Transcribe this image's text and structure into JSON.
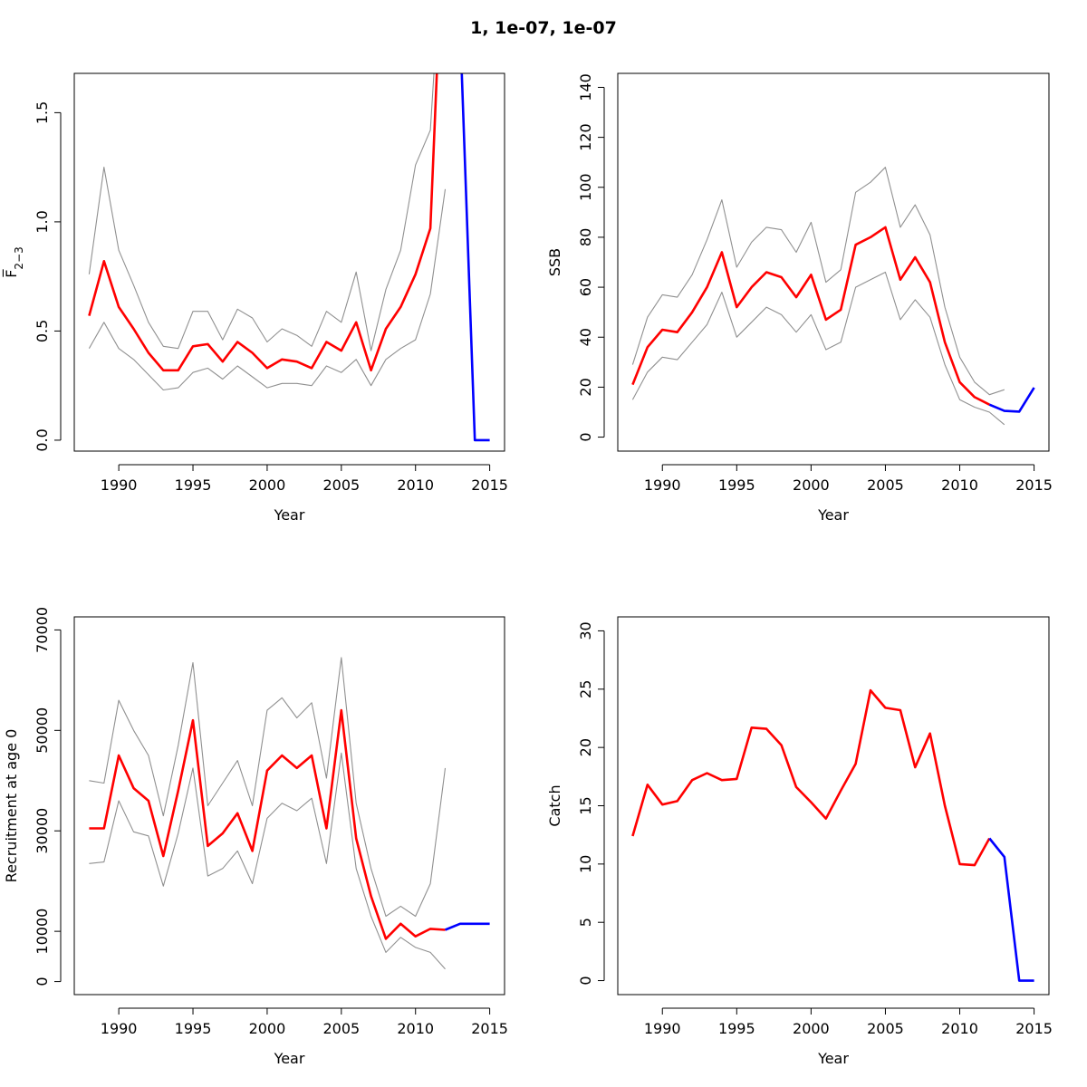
{
  "figure": {
    "title": "1, 1e-07, 1e-07"
  },
  "colors": {
    "estimate": "#ff0000",
    "forecast": "#0000ff",
    "bounds": "#909090"
  },
  "chart_data": [
    {
      "type": "line",
      "title": "",
      "xlabel": "Year",
      "ylabel": "F̅",
      "ylabel_sub": "2−3",
      "xlim": [
        1987.0,
        2016.0
      ],
      "ylim": [
        -0.05,
        1.68
      ],
      "xticks": [
        1990,
        1995,
        2000,
        2005,
        2010,
        2015
      ],
      "xtick_labels": [
        "1990",
        "1995",
        "2000",
        "2005",
        "2010",
        "2015"
      ],
      "yticks": [
        0.0,
        0.5,
        1.0,
        1.5
      ],
      "ytick_labels": [
        "0.0",
        "0.5",
        "1.0",
        "1.5"
      ],
      "series": [
        {
          "role": "upper",
          "x": [
            1988,
            1989,
            1990,
            1991,
            1992,
            1993,
            1994,
            1995,
            1996,
            1997,
            1998,
            1999,
            2000,
            2001,
            2002,
            2003,
            2004,
            2005,
            2006,
            2007,
            2008,
            2009,
            2010,
            2011,
            2012
          ],
          "values": [
            0.76,
            1.25,
            0.87,
            0.71,
            0.54,
            0.43,
            0.42,
            0.59,
            0.59,
            0.46,
            0.6,
            0.56,
            0.45,
            0.51,
            0.48,
            0.43,
            0.59,
            0.54,
            0.77,
            0.41,
            0.69,
            0.87,
            1.26,
            1.42,
            2.5
          ]
        },
        {
          "role": "estimate",
          "x": [
            1988,
            1989,
            1990,
            1991,
            1992,
            1993,
            1994,
            1995,
            1996,
            1997,
            1998,
            1999,
            2000,
            2001,
            2002,
            2003,
            2004,
            2005,
            2006,
            2007,
            2008,
            2009,
            2010,
            2011,
            2012
          ],
          "values": [
            0.57,
            0.82,
            0.61,
            0.51,
            0.4,
            0.32,
            0.32,
            0.43,
            0.44,
            0.36,
            0.45,
            0.4,
            0.33,
            0.37,
            0.36,
            0.33,
            0.45,
            0.41,
            0.54,
            0.32,
            0.51,
            0.61,
            0.76,
            0.97,
            2.6
          ]
        },
        {
          "role": "lower",
          "x": [
            1988,
            1989,
            1990,
            1991,
            1992,
            1993,
            1994,
            1995,
            1996,
            1997,
            1998,
            1999,
            2000,
            2001,
            2002,
            2003,
            2004,
            2005,
            2006,
            2007,
            2008,
            2009,
            2010,
            2011,
            2012
          ],
          "values": [
            0.42,
            0.54,
            0.42,
            0.37,
            0.3,
            0.23,
            0.24,
            0.31,
            0.33,
            0.28,
            0.34,
            0.29,
            0.24,
            0.26,
            0.26,
            0.25,
            0.34,
            0.31,
            0.37,
            0.25,
            0.37,
            0.42,
            0.46,
            0.67,
            1.15
          ]
        },
        {
          "role": "forecast",
          "x": [
            2012,
            2013,
            2014,
            2015
          ],
          "values": [
            2.6,
            1.9,
            0.0,
            0.0
          ]
        }
      ]
    },
    {
      "type": "line",
      "title": "",
      "xlabel": "Year",
      "ylabel": "SSB",
      "xlim": [
        1987.0,
        2016.0
      ],
      "ylim": [
        -5.6,
        145.6
      ],
      "xticks": [
        1990,
        1995,
        2000,
        2005,
        2010,
        2015
      ],
      "xtick_labels": [
        "1990",
        "1995",
        "2000",
        "2005",
        "2010",
        "2015"
      ],
      "yticks": [
        0,
        20,
        40,
        60,
        80,
        100,
        120,
        140
      ],
      "ytick_labels": [
        "0",
        "20",
        "40",
        "60",
        "80",
        "100",
        "120",
        "140"
      ],
      "series": [
        {
          "role": "upper",
          "x": [
            1988,
            1989,
            1990,
            1991,
            1992,
            1993,
            1994,
            1995,
            1996,
            1997,
            1998,
            1999,
            2000,
            2001,
            2002,
            2003,
            2004,
            2005,
            2006,
            2007,
            2008,
            2009,
            2010,
            2011,
            2012,
            2013
          ],
          "values": [
            29,
            48,
            57,
            56,
            65,
            79,
            95,
            68,
            78,
            84,
            83,
            74,
            86,
            62,
            67,
            98,
            102,
            108,
            84,
            93,
            81,
            52,
            32,
            22,
            17,
            19
          ]
        },
        {
          "role": "estimate",
          "x": [
            1988,
            1989,
            1990,
            1991,
            1992,
            1993,
            1994,
            1995,
            1996,
            1997,
            1998,
            1999,
            2000,
            2001,
            2002,
            2003,
            2004,
            2005,
            2006,
            2007,
            2008,
            2009,
            2010,
            2011,
            2012
          ],
          "values": [
            21,
            36,
            43,
            42,
            50,
            60,
            74,
            52,
            60,
            66,
            64,
            56,
            65,
            47,
            51,
            77,
            80,
            84,
            63,
            72,
            62,
            38,
            22,
            16,
            13
          ]
        },
        {
          "role": "lower",
          "x": [
            1988,
            1989,
            1990,
            1991,
            1992,
            1993,
            1994,
            1995,
            1996,
            1997,
            1998,
            1999,
            2000,
            2001,
            2002,
            2003,
            2004,
            2005,
            2006,
            2007,
            2008,
            2009,
            2010,
            2011,
            2012,
            2013
          ],
          "values": [
            15,
            26,
            32,
            31,
            38,
            45,
            58,
            40,
            46,
            52,
            49,
            42,
            49,
            35,
            38,
            60,
            63,
            66,
            47,
            55,
            48,
            29,
            15,
            12,
            10,
            5
          ]
        },
        {
          "role": "forecast",
          "x": [
            2012,
            2013,
            2014,
            2015
          ],
          "values": [
            13,
            10.5,
            10.2,
            19.8
          ]
        }
      ]
    },
    {
      "type": "line",
      "title": "",
      "xlabel": "Year",
      "ylabel": "Recruitment at age 0",
      "xlim": [
        1987.0,
        2016.0
      ],
      "ylim": [
        -2600,
        72600
      ],
      "xticks": [
        1990,
        1995,
        2000,
        2005,
        2010,
        2015
      ],
      "xtick_labels": [
        "1990",
        "1995",
        "2000",
        "2005",
        "2010",
        "2015"
      ],
      "yticks": [
        0,
        10000,
        30000,
        50000,
        70000
      ],
      "ytick_labels": [
        "0",
        "10000",
        "30000",
        "50000",
        "70000"
      ],
      "series": [
        {
          "role": "upper",
          "x": [
            1988,
            1989,
            1990,
            1991,
            1992,
            1993,
            1994,
            1995,
            1996,
            1997,
            1998,
            1999,
            2000,
            2001,
            2002,
            2003,
            2004,
            2005,
            2006,
            2007,
            2008,
            2009,
            2010,
            2011,
            2012
          ],
          "values": [
            40000,
            39500,
            56000,
            50000,
            45000,
            33000,
            47000,
            63500,
            35000,
            39500,
            44000,
            35000,
            54000,
            56500,
            52500,
            55500,
            40500,
            64500,
            35500,
            22500,
            13000,
            15000,
            13000,
            19500,
            42500
          ]
        },
        {
          "role": "estimate",
          "x": [
            1988,
            1989,
            1990,
            1991,
            1992,
            1993,
            1994,
            1995,
            1996,
            1997,
            1998,
            1999,
            2000,
            2001,
            2002,
            2003,
            2004,
            2005,
            2006,
            2007,
            2008,
            2009,
            2010,
            2011,
            2012
          ],
          "values": [
            30500,
            30500,
            45000,
            38500,
            36000,
            25000,
            38000,
            52000,
            27000,
            29500,
            33500,
            26000,
            42000,
            45000,
            42500,
            45000,
            30500,
            54000,
            28500,
            17000,
            8500,
            11500,
            9000,
            10500,
            10300
          ]
        },
        {
          "role": "lower",
          "x": [
            1988,
            1989,
            1990,
            1991,
            1992,
            1993,
            1994,
            1995,
            1996,
            1997,
            1998,
            1999,
            2000,
            2001,
            2002,
            2003,
            2004,
            2005,
            2006,
            2007,
            2008,
            2009,
            2010,
            2011,
            2012
          ],
          "values": [
            23500,
            23800,
            36000,
            29800,
            29000,
            19000,
            29500,
            42500,
            21000,
            22500,
            26000,
            19500,
            32500,
            35500,
            34000,
            36500,
            23500,
            45500,
            22500,
            13000,
            5800,
            8800,
            6800,
            5800,
            2500
          ]
        },
        {
          "role": "forecast",
          "x": [
            2012,
            2013,
            2014,
            2015
          ],
          "values": [
            10300,
            11500,
            11500,
            11500
          ]
        }
      ]
    },
    {
      "type": "line",
      "title": "",
      "xlabel": "Year",
      "ylabel": "Catch",
      "xlim": [
        1987.0,
        2016.0
      ],
      "ylim": [
        -1.2,
        31.2
      ],
      "xticks": [
        1990,
        1995,
        2000,
        2005,
        2010,
        2015
      ],
      "xtick_labels": [
        "1990",
        "1995",
        "2000",
        "2005",
        "2010",
        "2015"
      ],
      "yticks": [
        0,
        5,
        10,
        15,
        20,
        25,
        30
      ],
      "ytick_labels": [
        "0",
        "5",
        "10",
        "15",
        "20",
        "25",
        "30"
      ],
      "series": [
        {
          "role": "estimate",
          "x": [
            1988,
            1989,
            1990,
            1991,
            1992,
            1993,
            1994,
            1995,
            1996,
            1997,
            1998,
            1999,
            2000,
            2001,
            2002,
            2003,
            2004,
            2005,
            2006,
            2007,
            2008,
            2009,
            2010,
            2011,
            2012
          ],
          "values": [
            12.4,
            16.8,
            15.1,
            15.4,
            17.2,
            17.8,
            17.2,
            17.3,
            21.7,
            21.6,
            20.2,
            16.6,
            15.3,
            13.9,
            16.3,
            18.6,
            24.9,
            23.4,
            23.2,
            18.3,
            21.2,
            15.0,
            10.0,
            9.9,
            12.2
          ]
        },
        {
          "role": "forecast",
          "x": [
            2012,
            2013,
            2014,
            2015
          ],
          "values": [
            12.2,
            10.6,
            0.0,
            0.0
          ]
        }
      ]
    }
  ]
}
